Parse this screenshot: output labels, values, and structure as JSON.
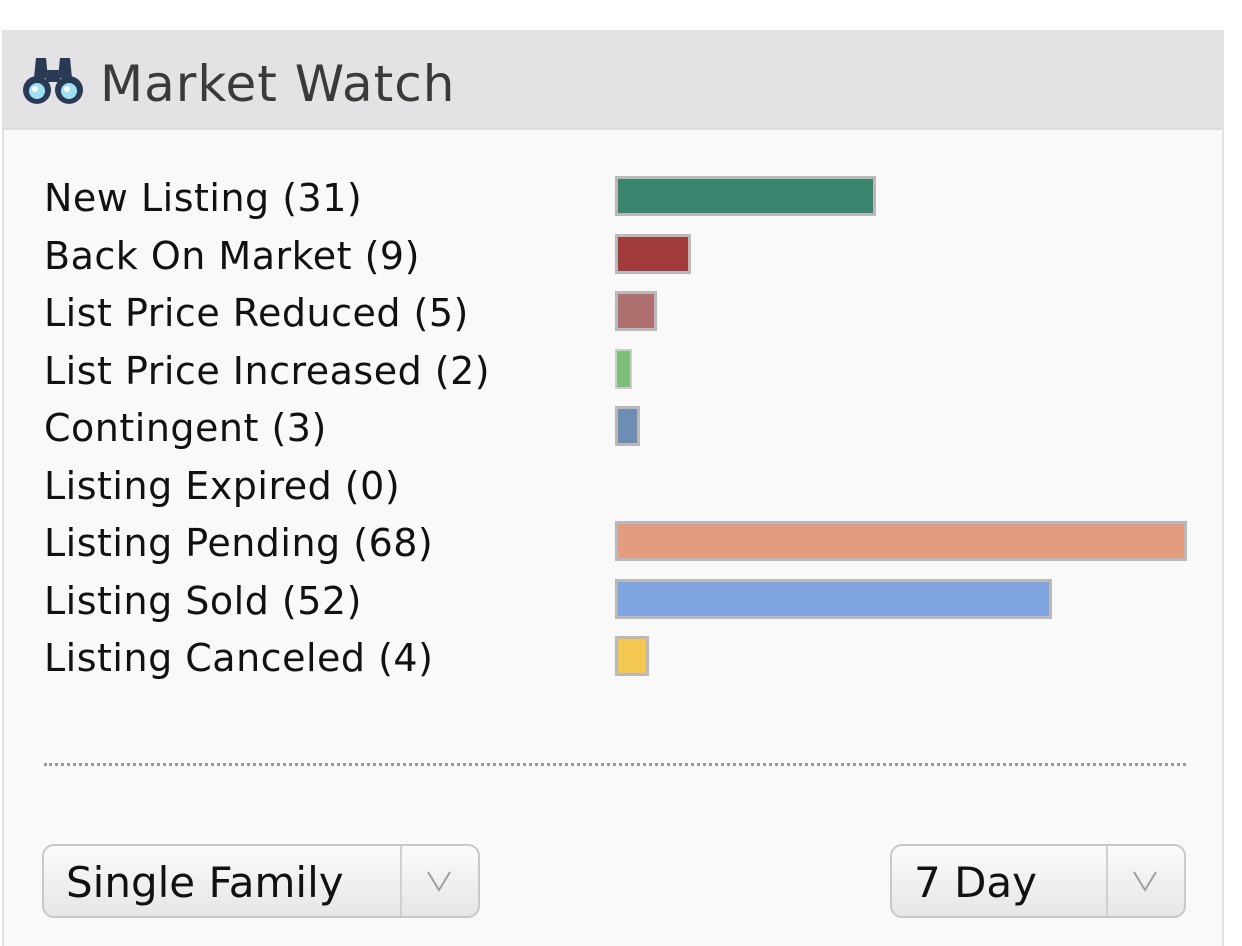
{
  "widget": {
    "title": "Market Watch",
    "icon": "binoculars-icon"
  },
  "chart_data": {
    "type": "bar",
    "orientation": "horizontal",
    "categories": [
      "New Listing (31)",
      "Back On Market (9)",
      "List Price Reduced (5)",
      "List Price Increased (2)",
      "Contingent (3)",
      "Listing Expired (0)",
      "Listing Pending (68)",
      "Listing Sold (52)",
      "Listing Canceled (4)"
    ],
    "values": [
      31,
      9,
      5,
      2,
      3,
      0,
      68,
      52,
      4
    ],
    "colors": [
      "#3b8470",
      "#a23c3a",
      "#b07070",
      "#7dbe78",
      "#6e8db5",
      "#cccccc",
      "#e49c80",
      "#7fa4e0",
      "#f5c852"
    ],
    "xlim": [
      0,
      68
    ]
  },
  "filters": {
    "property_type": {
      "value": "Single Family"
    },
    "period": {
      "value": "7 Day"
    }
  }
}
